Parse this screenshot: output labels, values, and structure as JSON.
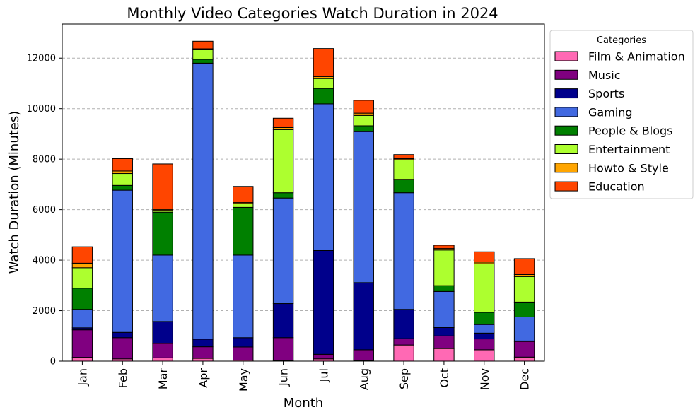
{
  "chart_data": {
    "type": "bar",
    "stacked": true,
    "title": "Monthly Video Categories Watch Duration in 2024",
    "xlabel": "Month",
    "ylabel": "Watch Duration (Minutes)",
    "ylim": [
      0,
      13350
    ],
    "yticks": [
      0,
      2000,
      4000,
      6000,
      8000,
      10000,
      12000
    ],
    "grid": "y-dashed",
    "legend_title": "Categories",
    "legend_position": "outside-top-right",
    "categories": [
      "Jan",
      "Feb",
      "Mar",
      "Apr",
      "May",
      "Jun",
      "Jul",
      "Aug",
      "Sep",
      "Oct",
      "Nov",
      "Dec"
    ],
    "series": [
      {
        "name": "Film & Animation",
        "color": "#ff69b4",
        "values": [
          150,
          90,
          130,
          110,
          40,
          30,
          90,
          30,
          640,
          500,
          450,
          160
        ]
      },
      {
        "name": "Music",
        "color": "#800080",
        "values": [
          1090,
          840,
          570,
          460,
          520,
          900,
          180,
          420,
          250,
          500,
          430,
          620
        ]
      },
      {
        "name": "Sports",
        "color": "#00008b",
        "values": [
          80,
          210,
          870,
          300,
          370,
          1350,
          4110,
          2660,
          1160,
          330,
          230,
          20
        ]
      },
      {
        "name": "Gaming",
        "color": "#4169e1",
        "values": [
          730,
          5630,
          2630,
          10930,
          3270,
          4180,
          5810,
          5980,
          4620,
          1430,
          340,
          950
        ]
      },
      {
        "name": "People & Blogs",
        "color": "#008000",
        "values": [
          840,
          190,
          1700,
          150,
          1890,
          210,
          610,
          230,
          530,
          230,
          480,
          590
        ]
      },
      {
        "name": "Entertainment",
        "color": "#adff2f",
        "values": [
          810,
          470,
          70,
          380,
          150,
          2500,
          390,
          410,
          780,
          1410,
          1930,
          1010
        ]
      },
      {
        "name": "Howto & Style",
        "color": "#ffa500",
        "values": [
          180,
          100,
          40,
          40,
          40,
          80,
          80,
          90,
          40,
          60,
          60,
          80
        ]
      },
      {
        "name": "Education",
        "color": "#ff4500",
        "values": [
          650,
          490,
          1800,
          300,
          640,
          370,
          1110,
          510,
          160,
          130,
          410,
          630
        ]
      }
    ]
  }
}
